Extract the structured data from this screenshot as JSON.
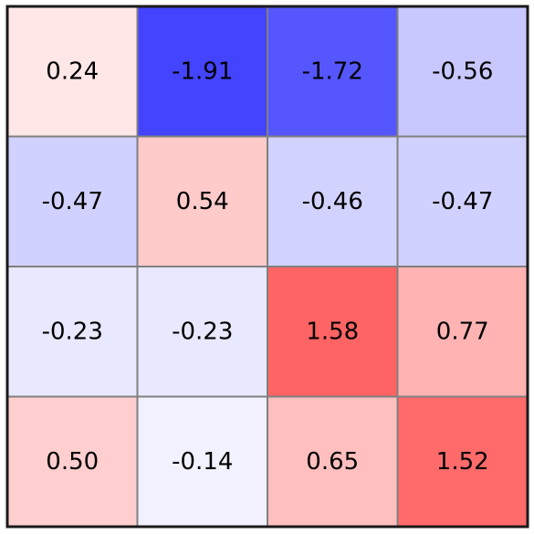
{
  "chart_data": {
    "type": "heatmap",
    "rows": 4,
    "cols": 4,
    "values": [
      [
        0.24,
        -1.91,
        -1.72,
        -0.56
      ],
      [
        -0.47,
        0.54,
        -0.46,
        -0.47
      ],
      [
        -0.23,
        -0.23,
        1.58,
        0.77
      ],
      [
        0.5,
        -0.14,
        0.65,
        1.52
      ]
    ],
    "labels": [
      [
        "0.24",
        "-1.91",
        "-1.72",
        "-0.56"
      ],
      [
        "-0.47",
        "0.54",
        "-0.46",
        "-0.47"
      ],
      [
        "-0.23",
        "-0.23",
        "1.58",
        "0.77"
      ],
      [
        "0.50",
        "-0.14",
        "0.65",
        "1.52"
      ]
    ],
    "colormap": "bwr",
    "vmin": -2.6,
    "vmax": 2.6,
    "grid": true,
    "colors": {
      "negative": "#0000ff",
      "positive": "#ff0000",
      "neutral": "#ffffff",
      "gridline": "#808080",
      "border": "#1a1a1a"
    }
  }
}
